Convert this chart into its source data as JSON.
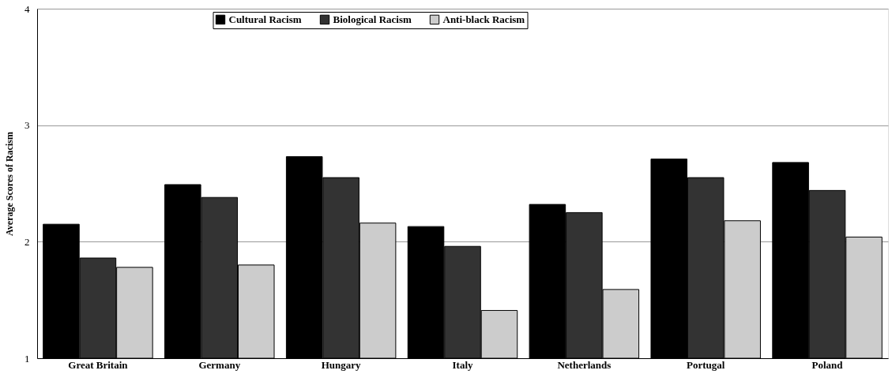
{
  "chart_data": {
    "type": "bar",
    "ylabel": "Average Scores of Racism",
    "categories": [
      "Great Britain",
      "Germany",
      "Hungary",
      "Italy",
      "Netherlands",
      "Portugal",
      "Poland"
    ],
    "series": [
      {
        "name": "Cultural Racism",
        "color": "#000000",
        "values": [
          2.15,
          2.49,
          2.73,
          2.13,
          2.32,
          2.71,
          2.68
        ]
      },
      {
        "name": "Biological Racism",
        "color": "#333333",
        "values": [
          1.86,
          2.38,
          2.55,
          1.96,
          2.25,
          2.55,
          2.44
        ]
      },
      {
        "name": "Anti-black Racism",
        "color": "#cccccc",
        "values": [
          1.78,
          1.8,
          2.16,
          1.41,
          1.59,
          2.18,
          2.04
        ]
      }
    ],
    "ylim": [
      1,
      4
    ],
    "yticks": [
      1,
      2,
      3,
      4
    ],
    "grid": "y",
    "legend": "top"
  }
}
